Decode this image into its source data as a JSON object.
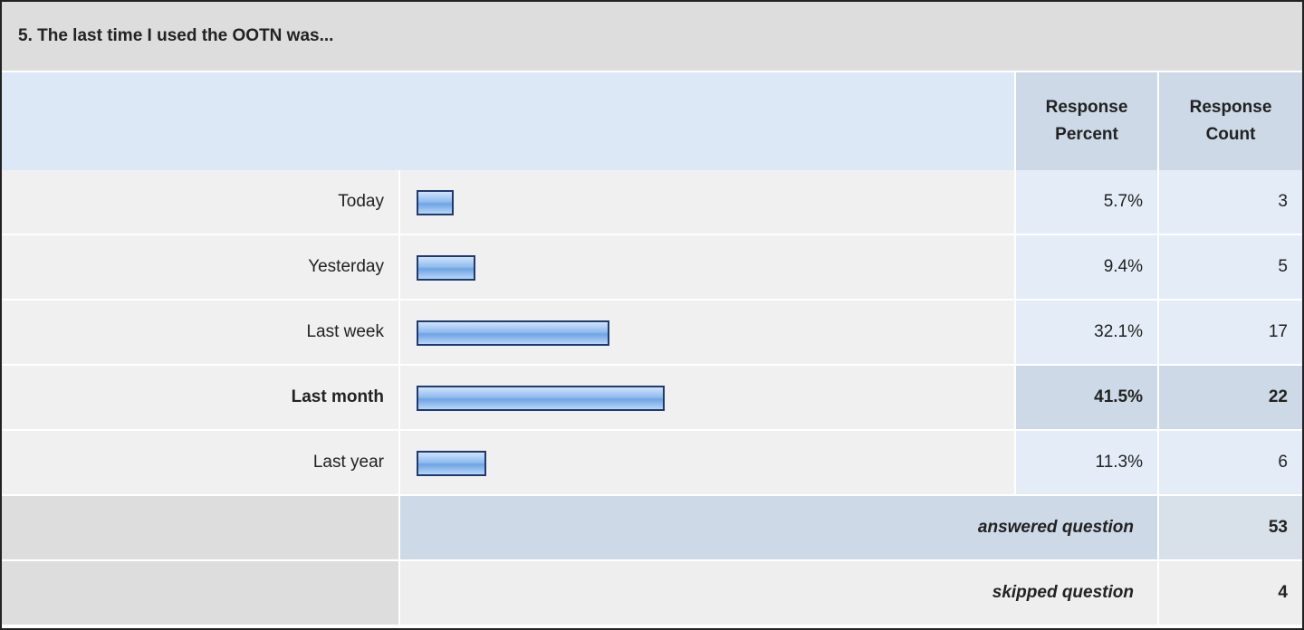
{
  "title": "5. The last time I used the OOTN was...",
  "header": {
    "percent": "Response Percent",
    "count": "Response Count"
  },
  "rows": [
    {
      "label": "Today",
      "percent": 5.7,
      "percent_label": "5.7%",
      "count": 3
    },
    {
      "label": "Yesterday",
      "percent": 9.4,
      "percent_label": "9.4%",
      "count": 5
    },
    {
      "label": "Last week",
      "percent": 32.1,
      "percent_label": "32.1%",
      "count": 17
    },
    {
      "label": "Last month",
      "percent": 41.5,
      "percent_label": "41.5%",
      "count": 22
    },
    {
      "label": "Last year",
      "percent": 11.3,
      "percent_label": "11.3%",
      "count": 6
    }
  ],
  "answered": {
    "label": "answered question",
    "count": 53
  },
  "skipped": {
    "label": "skipped question",
    "count": 4
  }
}
